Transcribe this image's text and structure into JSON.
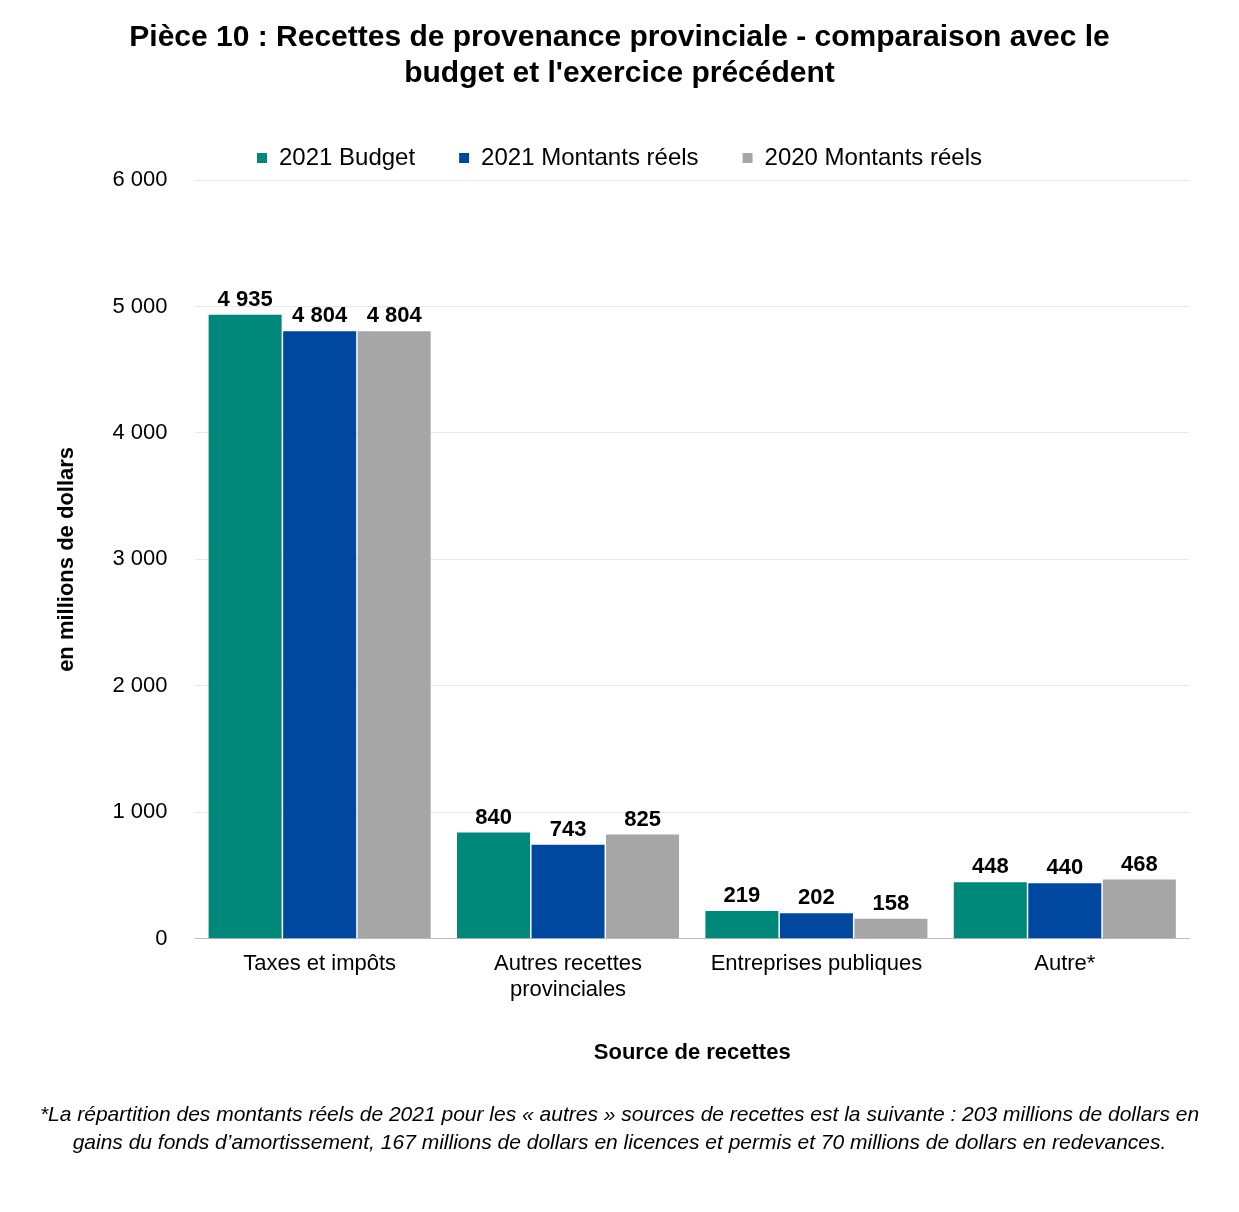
{
  "chart_data": {
    "type": "bar",
    "title": "Pièce 10 : Recettes de provenance provinciale - comparaison avec le budget et l'exercice précédent",
    "xlabel": "Source de recettes",
    "ylabel": "en millions de dollars",
    "categories": [
      "Taxes et impôts",
      "Autres recettes provinciales",
      "Entreprises publiques",
      "Autre*"
    ],
    "series": [
      {
        "name": "2021 Budget",
        "color": "#00897b",
        "values": [
          4935,
          840,
          219,
          448
        ]
      },
      {
        "name": "2021 Montants réels",
        "color": "#0047a0",
        "values": [
          4804,
          743,
          202,
          440
        ]
      },
      {
        "name": "2020 Montants réels",
        "color": "#a6a6a6",
        "values": [
          4804,
          825,
          158,
          468
        ]
      }
    ],
    "ylim": [
      0,
      6000
    ],
    "yticks": [
      {
        "value": 0,
        "label": "0"
      },
      {
        "value": 1000,
        "label": "1 000"
      },
      {
        "value": 2000,
        "label": "2 000"
      },
      {
        "value": 3000,
        "label": "3 000"
      },
      {
        "value": 4000,
        "label": "4 000"
      },
      {
        "value": 5000,
        "label": "5 000"
      },
      {
        "value": 6000,
        "label": "6 000"
      }
    ],
    "grid": "y",
    "legend": "top",
    "data_labels": true,
    "annotations": [
      "*La répartition des montants réels de 2021 pour les « autres » sources de recettes est la suivante : 203 millions de dollars en gains du fonds d’amortissement, 167 millions de dollars en licences et permis et 70 millions de dollars en redevances."
    ]
  }
}
